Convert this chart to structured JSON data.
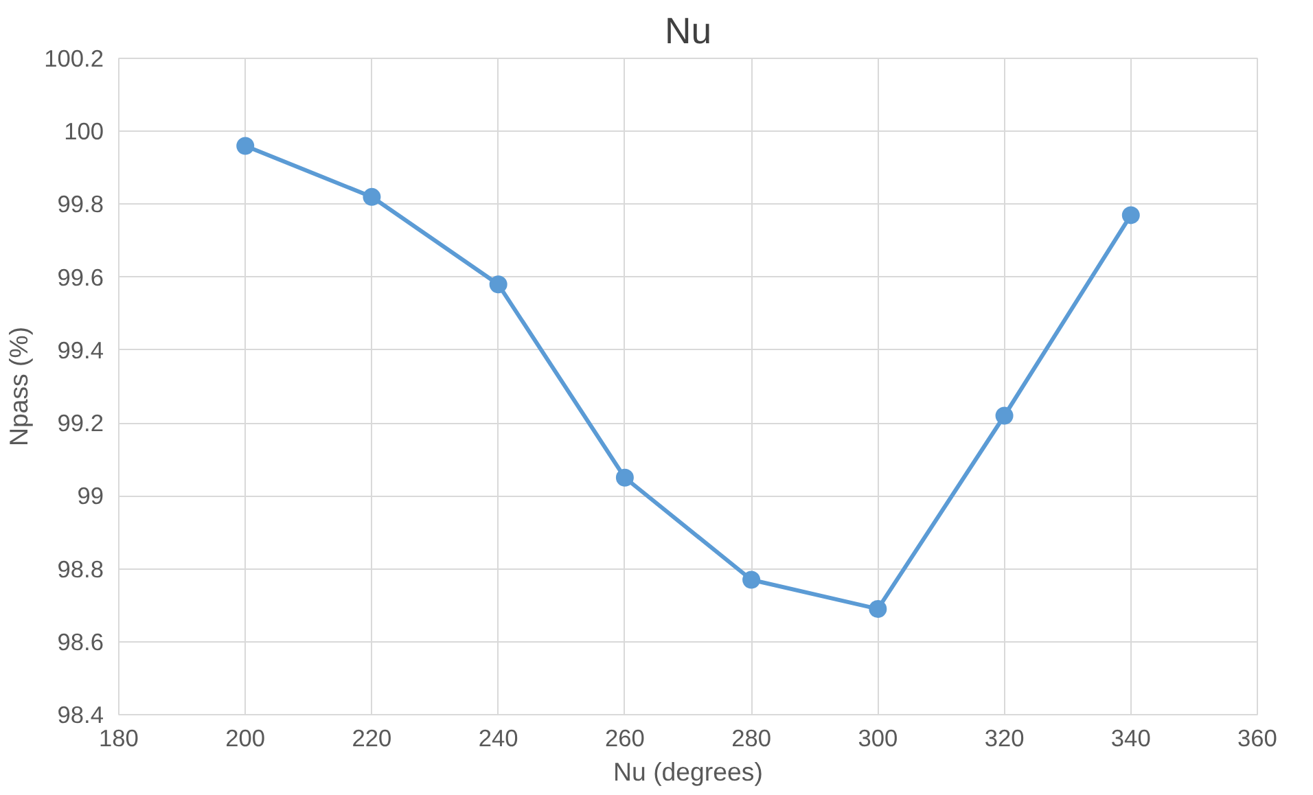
{
  "chart_data": {
    "type": "line",
    "title": "Nu",
    "xlabel": "Nu (degrees)",
    "ylabel": "Npass (%)",
    "x": [
      200,
      220,
      240,
      260,
      280,
      300,
      320,
      340
    ],
    "series": [
      {
        "color": "#5b9bd5",
        "values": [
          99.96,
          99.82,
          99.58,
          99.05,
          98.77,
          98.69,
          99.22,
          99.77
        ]
      }
    ],
    "xlim": [
      180,
      360
    ],
    "xticks": [
      180,
      200,
      220,
      240,
      260,
      280,
      300,
      320,
      340,
      360
    ],
    "ylim": [
      98.4,
      100.2
    ],
    "yticks": [
      98.4,
      98.6,
      98.8,
      99,
      99.2,
      99.4,
      99.6,
      99.8,
      100,
      100.2
    ],
    "grid": true,
    "marker": "circle",
    "line_style": "solid"
  }
}
